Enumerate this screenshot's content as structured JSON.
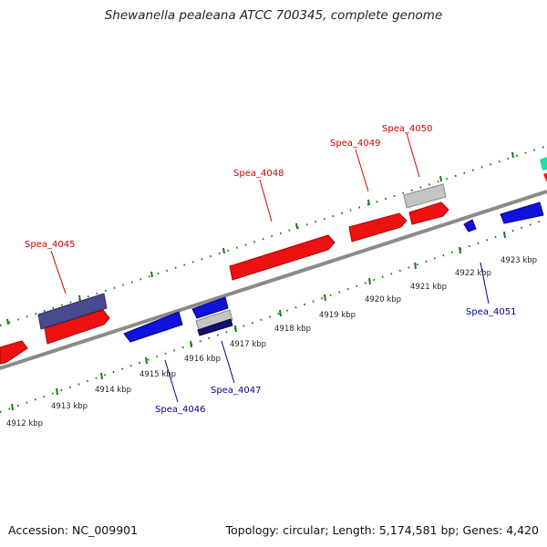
{
  "header": {
    "title": "Shewanella pealeana ATCC 700345, complete genome"
  },
  "footer": {
    "accession": "Accession: NC_009901",
    "topology": "Topology: circular; Length: 5,174,581 bp; Genes: 4,420"
  },
  "scale": {
    "labels": [
      "4912 kbp",
      "4913 kbp",
      "4914 kbp",
      "4915 kbp",
      "4916 kbp",
      "4917 kbp",
      "4918 kbp",
      "4919 kbp",
      "4920 kbp",
      "4921 kbp",
      "4922 kbp",
      "4923 kbp"
    ]
  },
  "genes": {
    "forward": [
      "Spea_4045",
      "Spea_4048",
      "Spea_4049",
      "Spea_4050"
    ],
    "reverse": [
      "Spea_4046",
      "Spea_4047",
      "Spea_4051"
    ]
  },
  "colors": {
    "forward_gene": "#ee1111",
    "reverse_gene": "#1111dd",
    "rna_gene": "#c0c0c0",
    "other_gene": "#4a4a8e",
    "backbone": "#888888",
    "ticks": "#1a7a1a",
    "forward_label": "#cc0000",
    "reverse_label": "#000099"
  }
}
